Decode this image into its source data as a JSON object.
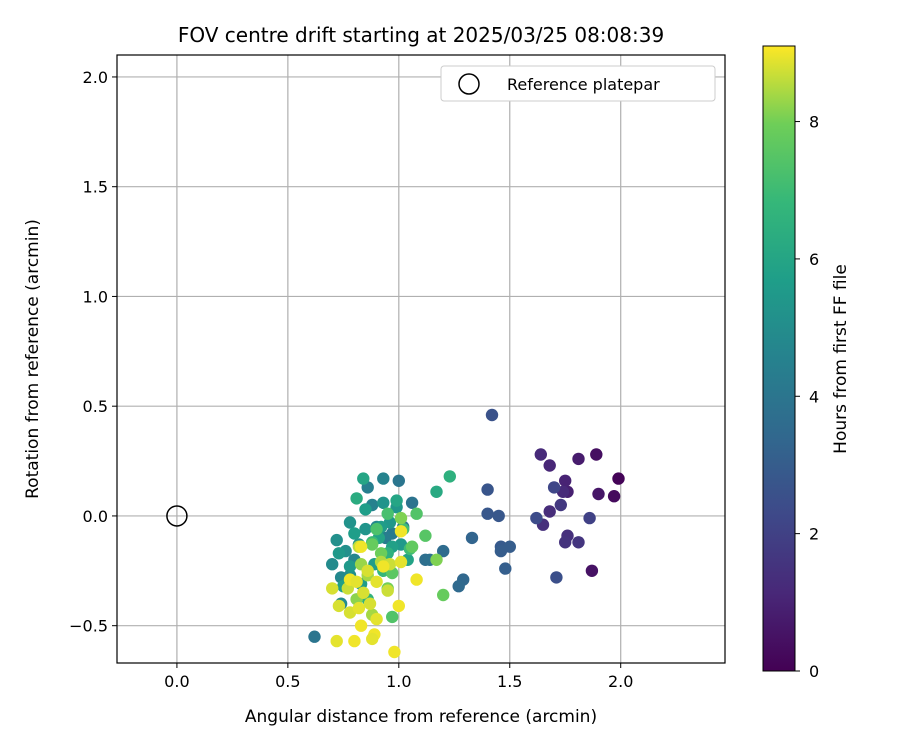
{
  "chart_data": {
    "type": "scatter",
    "title": "FOV centre drift starting at 2025/03/25 08:08:39",
    "xlabel": "Angular distance from reference (arcmin)",
    "ylabel": "Rotation from reference (arcmin)",
    "xlim": [
      -0.27,
      2.47
    ],
    "ylim": [
      -0.67,
      2.1
    ],
    "xticks": [
      0.0,
      0.5,
      1.0,
      1.5,
      2.0
    ],
    "xtick_labels": [
      "0.0",
      "0.5",
      "1.0",
      "1.5",
      "2.0"
    ],
    "yticks": [
      -0.5,
      0.0,
      0.5,
      1.0,
      1.5,
      2.0
    ],
    "ytick_labels": [
      "−0.5",
      "0.0",
      "0.5",
      "1.0",
      "1.5",
      "2.0"
    ],
    "grid": true,
    "legend": {
      "position": "top-right",
      "entries": [
        "Reference platepar"
      ]
    },
    "reference_point": {
      "x": 0.0,
      "y": 0.0,
      "label": "Reference platepar"
    },
    "colorbar": {
      "label": "Hours from first FF file",
      "range": [
        0,
        9.1
      ],
      "ticks": [
        0,
        2,
        4,
        6,
        8
      ],
      "tick_labels": [
        "0",
        "2",
        "4",
        "6",
        "8"
      ],
      "colormap": "viridis"
    },
    "points": [
      {
        "x": 1.99,
        "y": 0.17,
        "c": 0.1
      },
      {
        "x": 1.97,
        "y": 0.09,
        "c": 0.3
      },
      {
        "x": 1.89,
        "y": 0.28,
        "c": 0.4
      },
      {
        "x": 1.87,
        "y": -0.25,
        "c": 0.5
      },
      {
        "x": 1.9,
        "y": 0.1,
        "c": 0.6
      },
      {
        "x": 1.81,
        "y": 0.26,
        "c": 0.8
      },
      {
        "x": 1.76,
        "y": 0.11,
        "c": 0.9
      },
      {
        "x": 1.75,
        "y": 0.16,
        "c": 1.0
      },
      {
        "x": 1.68,
        "y": 0.23,
        "c": 1.1
      },
      {
        "x": 1.64,
        "y": 0.28,
        "c": 1.2
      },
      {
        "x": 1.74,
        "y": 0.11,
        "c": 1.2
      },
      {
        "x": 1.68,
        "y": 0.02,
        "c": 1.3
      },
      {
        "x": 1.65,
        "y": -0.04,
        "c": 1.4
      },
      {
        "x": 1.76,
        "y": -0.09,
        "c": 1.4
      },
      {
        "x": 1.75,
        "y": -0.12,
        "c": 1.5
      },
      {
        "x": 1.81,
        "y": -0.12,
        "c": 1.6
      },
      {
        "x": 1.73,
        "y": 0.05,
        "c": 1.7
      },
      {
        "x": 1.86,
        "y": -0.01,
        "c": 2.0
      },
      {
        "x": 1.7,
        "y": 0.13,
        "c": 2.2
      },
      {
        "x": 1.62,
        "y": -0.01,
        "c": 2.4
      },
      {
        "x": 1.71,
        "y": -0.28,
        "c": 2.5
      },
      {
        "x": 1.42,
        "y": 0.46,
        "c": 2.6
      },
      {
        "x": 1.4,
        "y": 0.12,
        "c": 2.7
      },
      {
        "x": 1.4,
        "y": 0.01,
        "c": 2.8
      },
      {
        "x": 1.45,
        "y": 0.0,
        "c": 2.8
      },
      {
        "x": 1.46,
        "y": -0.14,
        "c": 2.9
      },
      {
        "x": 1.46,
        "y": -0.16,
        "c": 3.0
      },
      {
        "x": 1.5,
        "y": -0.14,
        "c": 3.0
      },
      {
        "x": 1.48,
        "y": -0.24,
        "c": 3.1
      },
      {
        "x": 1.33,
        "y": -0.1,
        "c": 3.3
      },
      {
        "x": 1.29,
        "y": -0.29,
        "c": 3.4
      },
      {
        "x": 1.27,
        "y": -0.32,
        "c": 3.5
      },
      {
        "x": 1.2,
        "y": -0.16,
        "c": 3.6
      },
      {
        "x": 1.12,
        "y": -0.2,
        "c": 3.7
      },
      {
        "x": 1.14,
        "y": -0.2,
        "c": 3.8
      },
      {
        "x": 1.06,
        "y": 0.06,
        "c": 3.9
      },
      {
        "x": 1.0,
        "y": 0.16,
        "c": 4.0
      },
      {
        "x": 1.02,
        "y": -0.05,
        "c": 4.1
      },
      {
        "x": 0.97,
        "y": -0.08,
        "c": 4.2
      },
      {
        "x": 0.94,
        "y": -0.1,
        "c": 4.3
      },
      {
        "x": 0.86,
        "y": 0.13,
        "c": 4.4
      },
      {
        "x": 0.88,
        "y": 0.05,
        "c": 4.5
      },
      {
        "x": 0.93,
        "y": 0.17,
        "c": 4.6
      },
      {
        "x": 0.9,
        "y": -0.05,
        "c": 4.7
      },
      {
        "x": 0.8,
        "y": -0.2,
        "c": 4.7
      },
      {
        "x": 0.74,
        "y": -0.28,
        "c": 4.8
      },
      {
        "x": 0.7,
        "y": -0.22,
        "c": 4.9
      },
      {
        "x": 0.74,
        "y": -0.4,
        "c": 4.9
      },
      {
        "x": 0.62,
        "y": -0.55,
        "c": 4.0
      },
      {
        "x": 0.78,
        "y": -0.27,
        "c": 5.0
      },
      {
        "x": 0.72,
        "y": -0.11,
        "c": 5.1
      },
      {
        "x": 0.76,
        "y": -0.16,
        "c": 5.1
      },
      {
        "x": 0.78,
        "y": -0.03,
        "c": 5.2
      },
      {
        "x": 0.82,
        "y": -0.13,
        "c": 5.2
      },
      {
        "x": 0.85,
        "y": -0.06,
        "c": 5.3
      },
      {
        "x": 0.93,
        "y": 0.06,
        "c": 5.3
      },
      {
        "x": 0.96,
        "y": -0.03,
        "c": 5.4
      },
      {
        "x": 0.99,
        "y": 0.04,
        "c": 5.4
      },
      {
        "x": 1.01,
        "y": -0.13,
        "c": 5.5
      },
      {
        "x": 0.73,
        "y": -0.17,
        "c": 5.5
      },
      {
        "x": 0.78,
        "y": -0.23,
        "c": 5.5
      },
      {
        "x": 0.83,
        "y": -0.31,
        "c": 5.6
      },
      {
        "x": 0.89,
        "y": -0.22,
        "c": 5.6
      },
      {
        "x": 0.92,
        "y": -0.05,
        "c": 5.6
      },
      {
        "x": 0.85,
        "y": 0.03,
        "c": 5.7
      },
      {
        "x": 0.8,
        "y": -0.08,
        "c": 5.7
      },
      {
        "x": 0.75,
        "y": -0.32,
        "c": 5.8
      },
      {
        "x": 0.97,
        "y": -0.14,
        "c": 5.8
      },
      {
        "x": 1.04,
        "y": -0.2,
        "c": 5.9
      },
      {
        "x": 0.91,
        "y": -0.1,
        "c": 5.9
      },
      {
        "x": 0.84,
        "y": 0.17,
        "c": 6.0
      },
      {
        "x": 0.99,
        "y": 0.07,
        "c": 6.0
      },
      {
        "x": 1.17,
        "y": 0.11,
        "c": 6.2
      },
      {
        "x": 0.81,
        "y": 0.08,
        "c": 6.3
      },
      {
        "x": 1.23,
        "y": 0.18,
        "c": 6.5
      },
      {
        "x": 0.95,
        "y": -0.17,
        "c": 6.5
      },
      {
        "x": 0.86,
        "y": -0.38,
        "c": 6.6
      },
      {
        "x": 0.93,
        "y": -0.25,
        "c": 6.8
      },
      {
        "x": 0.88,
        "y": -0.12,
        "c": 6.9
      },
      {
        "x": 1.05,
        "y": -0.15,
        "c": 7.0
      },
      {
        "x": 1.02,
        "y": -0.06,
        "c": 7.1
      },
      {
        "x": 0.95,
        "y": 0.01,
        "c": 7.2
      },
      {
        "x": 0.9,
        "y": -0.06,
        "c": 7.3
      },
      {
        "x": 0.97,
        "y": -0.46,
        "c": 7.4
      },
      {
        "x": 1.08,
        "y": 0.01,
        "c": 7.4
      },
      {
        "x": 1.12,
        "y": -0.09,
        "c": 7.5
      },
      {
        "x": 0.97,
        "y": -0.26,
        "c": 7.6
      },
      {
        "x": 1.06,
        "y": -0.14,
        "c": 7.7
      },
      {
        "x": 1.2,
        "y": -0.36,
        "c": 7.8
      },
      {
        "x": 0.88,
        "y": -0.13,
        "c": 7.8
      },
      {
        "x": 0.92,
        "y": -0.17,
        "c": 7.9
      },
      {
        "x": 0.95,
        "y": -0.33,
        "c": 8.0
      },
      {
        "x": 1.17,
        "y": -0.2,
        "c": 8.1
      },
      {
        "x": 1.01,
        "y": -0.01,
        "c": 8.1
      },
      {
        "x": 0.81,
        "y": -0.38,
        "c": 8.2
      },
      {
        "x": 0.83,
        "y": -0.22,
        "c": 8.3
      },
      {
        "x": 0.86,
        "y": -0.27,
        "c": 8.4
      },
      {
        "x": 0.88,
        "y": -0.45,
        "c": 8.4
      },
      {
        "x": 0.92,
        "y": -0.21,
        "c": 8.5
      },
      {
        "x": 0.82,
        "y": -0.14,
        "c": 8.6
      },
      {
        "x": 0.77,
        "y": -0.33,
        "c": 8.7
      },
      {
        "x": 0.7,
        "y": -0.33,
        "c": 8.8
      },
      {
        "x": 0.73,
        "y": -0.41,
        "c": 8.8
      },
      {
        "x": 0.72,
        "y": -0.57,
        "c": 8.9
      },
      {
        "x": 0.8,
        "y": -0.57,
        "c": 9.0
      },
      {
        "x": 0.83,
        "y": -0.5,
        "c": 9.0
      },
      {
        "x": 0.89,
        "y": -0.54,
        "c": 9.0
      },
      {
        "x": 0.88,
        "y": -0.56,
        "c": 8.9
      },
      {
        "x": 0.98,
        "y": -0.62,
        "c": 9.0
      },
      {
        "x": 1.0,
        "y": -0.41,
        "c": 9.0
      },
      {
        "x": 0.9,
        "y": -0.47,
        "c": 8.9
      },
      {
        "x": 0.78,
        "y": -0.44,
        "c": 8.8
      },
      {
        "x": 0.82,
        "y": -0.42,
        "c": 8.9
      },
      {
        "x": 0.87,
        "y": -0.4,
        "c": 8.8
      },
      {
        "x": 0.84,
        "y": -0.35,
        "c": 8.8
      },
      {
        "x": 0.95,
        "y": -0.34,
        "c": 8.7
      },
      {
        "x": 0.9,
        "y": -0.3,
        "c": 8.9
      },
      {
        "x": 1.08,
        "y": -0.29,
        "c": 9.0
      },
      {
        "x": 0.78,
        "y": -0.29,
        "c": 9.0
      },
      {
        "x": 0.86,
        "y": -0.25,
        "c": 8.8
      },
      {
        "x": 0.96,
        "y": -0.22,
        "c": 8.7
      },
      {
        "x": 1.01,
        "y": -0.21,
        "c": 8.9
      },
      {
        "x": 1.01,
        "y": -0.07,
        "c": 9.0
      },
      {
        "x": 0.83,
        "y": -0.14,
        "c": 9.0
      },
      {
        "x": 0.81,
        "y": -0.3,
        "c": 8.9
      },
      {
        "x": 0.93,
        "y": -0.23,
        "c": 9.0
      }
    ]
  }
}
